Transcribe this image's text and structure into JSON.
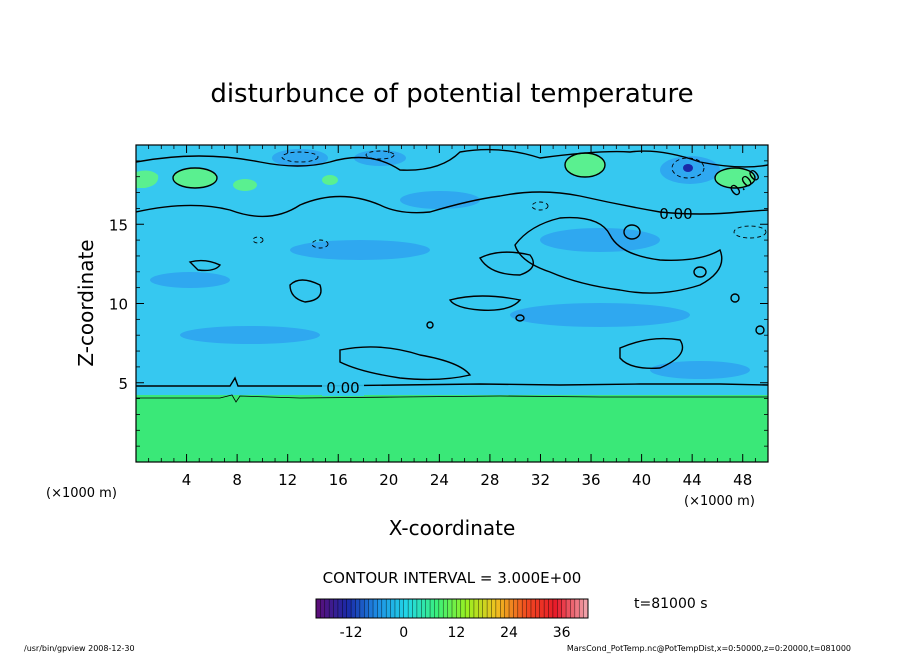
{
  "chart_data": {
    "type": "heatmap",
    "title": "disturbunce of potential temperature",
    "xlabel": "X-coordinate",
    "ylabel": "Z-coordinate",
    "x_unit_left": "(×1000 m)",
    "x_unit_right": "(×1000 m)",
    "xlim": [
      0,
      50
    ],
    "ylim": [
      0,
      20
    ],
    "x_ticks": [
      4,
      8,
      12,
      16,
      20,
      24,
      28,
      32,
      36,
      40,
      44,
      48
    ],
    "y_ticks": [
      5,
      10,
      15
    ],
    "contour_interval_label": "CONTOUR INTERVAL = 3.000E+00",
    "contour_labels": [
      "0.00",
      "0.00",
      "0.00"
    ],
    "time_label": "t=81000 s",
    "colorbar": {
      "min": -20,
      "max": 42,
      "ticks": [
        -12,
        0,
        12,
        24,
        36
      ],
      "colors": [
        "#5a0f7a",
        "#1a2aa8",
        "#1e8fe6",
        "#22d8e6",
        "#3af07a",
        "#9af020",
        "#f0c020",
        "#f04a20",
        "#e81a2a",
        "#f0a0a8"
      ]
    },
    "field_colors": {
      "lower_layer": "#3ae878",
      "upper_layer": "#36c8f0",
      "positive_patch": "#5af090",
      "negative_patch": "#2a8ef0"
    },
    "footer_left": "/usr/bin/gpview  2008-12-30",
    "footer_right": "MarsCond_PotTemp.nc@PotTempDist,x=0:50000,z=0:20000,t=081000"
  }
}
